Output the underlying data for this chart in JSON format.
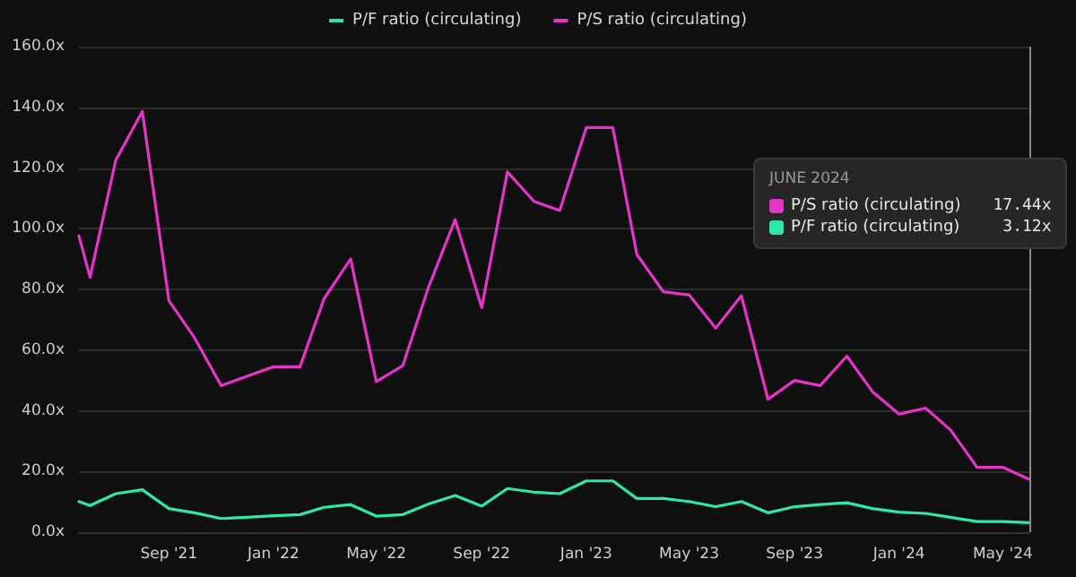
{
  "chart_data": {
    "type": "line",
    "x": [
      "2021-05-19",
      "2021-06",
      "2021-07",
      "2021-08",
      "2021-09",
      "2021-10",
      "2021-11",
      "2021-12",
      "2022-01",
      "2022-02",
      "2022-03",
      "2022-04",
      "2022-05",
      "2022-06",
      "2022-07",
      "2022-08",
      "2022-09",
      "2022-10",
      "2022-11",
      "2022-12",
      "2023-01",
      "2023-02",
      "2023-03",
      "2023-04",
      "2023-05",
      "2023-06",
      "2023-07",
      "2023-08",
      "2023-09",
      "2023-10",
      "2023-11",
      "2023-12",
      "2024-01",
      "2024-02",
      "2024-03",
      "2024-04",
      "2024-05",
      "2024-06"
    ],
    "series": [
      {
        "name": "P/F ratio (circulating)",
        "color": "#2ee8a5",
        "values": [
          10.1,
          8.8,
          12.7,
          14,
          7.8,
          6.4,
          4.5,
          4.9,
          5.4,
          5.8,
          8.2,
          9.1,
          5.3,
          5.8,
          9.3,
          12.1,
          8.6,
          14.4,
          13.2,
          12.7,
          16.9,
          16.9,
          11.1,
          11.1,
          10.1,
          8.4,
          10.1,
          6.4,
          8.4,
          9.1,
          9.7,
          7.8,
          6.6,
          6.2,
          4.9,
          3.5,
          3.5,
          3.12
        ]
      },
      {
        "name": "P/S ratio (circulating)",
        "color": "#e535c8",
        "values": [
          97.7,
          84,
          122.6,
          138.6,
          76.3,
          64,
          48.3,
          51.4,
          54.5,
          54.5,
          76.9,
          90,
          49.6,
          54.9,
          80.8,
          103,
          74,
          118.7,
          109,
          106,
          133.3,
          133.3,
          91.5,
          79.2,
          78.2,
          67.2,
          77.9,
          43.8,
          50,
          48.3,
          58,
          46.3,
          38.9,
          40.9,
          33.7,
          21.4,
          21.4,
          17.44
        ]
      }
    ],
    "xlim": [
      "2021-05-19",
      "2024-06"
    ],
    "xticks": [
      {
        "value": "2021-09",
        "label": "Sep '21"
      },
      {
        "value": "2022-01",
        "label": "Jan '22"
      },
      {
        "value": "2022-05",
        "label": "May '22"
      },
      {
        "value": "2022-09",
        "label": "Sep '22"
      },
      {
        "value": "2023-01",
        "label": "Jan '23"
      },
      {
        "value": "2023-05",
        "label": "May '23"
      },
      {
        "value": "2023-09",
        "label": "Sep '23"
      },
      {
        "value": "2024-01",
        "label": "Jan '24"
      },
      {
        "value": "2024-05",
        "label": "May '24"
      }
    ],
    "ylim": [
      0,
      160
    ],
    "yticks": [
      {
        "value": 0,
        "label": "0.0x"
      },
      {
        "value": 20,
        "label": "20.0x"
      },
      {
        "value": 40,
        "label": "40.0x"
      },
      {
        "value": 60,
        "label": "60.0x"
      },
      {
        "value": 80,
        "label": "80.0x"
      },
      {
        "value": 100,
        "label": "100.0x"
      },
      {
        "value": 120,
        "label": "120.0x"
      },
      {
        "value": 140,
        "label": "140.0x"
      },
      {
        "value": 160,
        "label": "160.0x"
      }
    ],
    "ref_lines": [
      {
        "axis": "x",
        "value": "2024-06",
        "color": "#8a8a8a"
      }
    ],
    "annotations": [
      "JUNE 2024",
      "17.44x",
      "3.12x"
    ],
    "grid": "y",
    "legend": "top",
    "marker": "none",
    "line_style": "solid"
  }
}
